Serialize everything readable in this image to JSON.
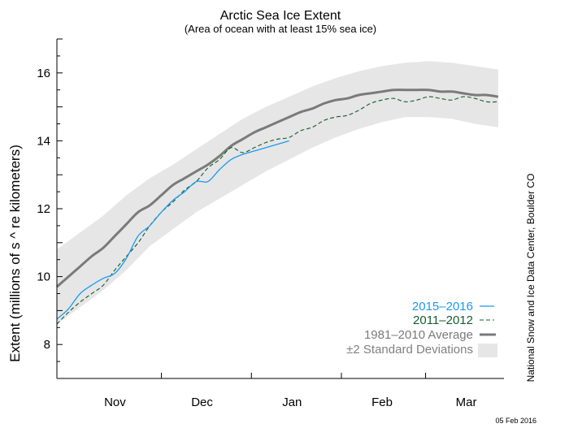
{
  "chart_data": {
    "type": "line",
    "title": "Arctic Sea Ice Extent",
    "subtitle": "(Area of ocean with at least 15% sea ice)",
    "ylabel": "Extent (millions of s ^ re kilometers)",
    "ylim": [
      7,
      17
    ],
    "yticks": [
      8,
      10,
      12,
      14,
      16
    ],
    "xlim": [
      "Oct 26",
      "Mar 28"
    ],
    "month_labels": [
      "Nov",
      "Dec",
      "Jan",
      "Feb",
      "Mar"
    ],
    "month_label_dates": [
      "Nov 15",
      "Dec 15",
      "Jan 15",
      "Feb 15",
      "Mar 15"
    ],
    "month_tick_dates": [
      "Dec 1",
      "Jan 1",
      "Feb 1",
      "Mar 1"
    ],
    "series": [
      {
        "name": "2015–2016",
        "color": "#1a9bf0",
        "style": "solid",
        "points": [
          [
            "Oct 26",
            8.75
          ],
          [
            "Oct 30",
            9.05
          ],
          [
            "Nov 3",
            9.5
          ],
          [
            "Nov 7",
            9.75
          ],
          [
            "Nov 11",
            9.95
          ],
          [
            "Nov 15",
            10.1
          ],
          [
            "Nov 19",
            10.55
          ],
          [
            "Nov 23",
            11.2
          ],
          [
            "Nov 27",
            11.5
          ],
          [
            "Dec 1",
            11.9
          ],
          [
            "Dec 5",
            12.25
          ],
          [
            "Dec 9",
            12.5
          ],
          [
            "Dec 13",
            12.8
          ],
          [
            "Dec 17",
            12.8
          ],
          [
            "Dec 21",
            13.15
          ],
          [
            "Dec 25",
            13.45
          ],
          [
            "Dec 29",
            13.6
          ],
          [
            "Jan 2",
            13.7
          ],
          [
            "Jan 6",
            13.8
          ],
          [
            "Jan 10",
            13.9
          ],
          [
            "Jan 14",
            14.0
          ]
        ]
      },
      {
        "name": "2011–2012",
        "color": "#135d2b",
        "style": "dashed",
        "points": [
          [
            "Oct 26",
            8.6
          ],
          [
            "Oct 30",
            8.95
          ],
          [
            "Nov 3",
            9.25
          ],
          [
            "Nov 7",
            9.5
          ],
          [
            "Nov 11",
            9.75
          ],
          [
            "Nov 15",
            10.2
          ],
          [
            "Nov 19",
            10.6
          ],
          [
            "Nov 23",
            11.0
          ],
          [
            "Nov 27",
            11.5
          ],
          [
            "Dec 1",
            11.9
          ],
          [
            "Dec 5",
            12.2
          ],
          [
            "Dec 9",
            12.55
          ],
          [
            "Dec 13",
            12.8
          ],
          [
            "Dec 17",
            13.2
          ],
          [
            "Dec 21",
            13.45
          ],
          [
            "Dec 25",
            13.8
          ],
          [
            "Dec 29",
            13.65
          ],
          [
            "Jan 2",
            13.8
          ],
          [
            "Jan 6",
            13.95
          ],
          [
            "Jan 10",
            14.05
          ],
          [
            "Jan 14",
            14.1
          ],
          [
            "Jan 18",
            14.3
          ],
          [
            "Jan 22",
            14.4
          ],
          [
            "Jan 26",
            14.6
          ],
          [
            "Jan 30",
            14.7
          ],
          [
            "Feb 3",
            14.75
          ],
          [
            "Feb 7",
            14.9
          ],
          [
            "Feb 11",
            15.1
          ],
          [
            "Feb 15",
            15.2
          ],
          [
            "Feb 19",
            15.25
          ],
          [
            "Feb 23",
            15.15
          ],
          [
            "Feb 27",
            15.2
          ],
          [
            "Mar 2",
            15.3
          ],
          [
            "Mar 6",
            15.25
          ],
          [
            "Mar 10",
            15.2
          ],
          [
            "Mar 14",
            15.3
          ],
          [
            "Mar 18",
            15.25
          ],
          [
            "Mar 22",
            15.15
          ],
          [
            "Mar 26",
            15.15
          ]
        ]
      },
      {
        "name": "1981–2010 Average",
        "color": "#7a7a7a",
        "style": "solid-thick",
        "points": [
          [
            "Oct 26",
            9.7
          ],
          [
            "Oct 30",
            10.0
          ],
          [
            "Nov 3",
            10.3
          ],
          [
            "Nov 7",
            10.6
          ],
          [
            "Nov 11",
            10.85
          ],
          [
            "Nov 15",
            11.2
          ],
          [
            "Nov 19",
            11.55
          ],
          [
            "Nov 23",
            11.9
          ],
          [
            "Nov 27",
            12.1
          ],
          [
            "Dec 1",
            12.4
          ],
          [
            "Dec 5",
            12.7
          ],
          [
            "Dec 9",
            12.9
          ],
          [
            "Dec 13",
            13.1
          ],
          [
            "Dec 17",
            13.3
          ],
          [
            "Dec 21",
            13.55
          ],
          [
            "Dec 25",
            13.85
          ],
          [
            "Dec 29",
            14.05
          ],
          [
            "Jan 2",
            14.25
          ],
          [
            "Jan 6",
            14.4
          ],
          [
            "Jan 10",
            14.55
          ],
          [
            "Jan 14",
            14.7
          ],
          [
            "Jan 18",
            14.85
          ],
          [
            "Jan 22",
            14.95
          ],
          [
            "Jan 26",
            15.1
          ],
          [
            "Jan 30",
            15.2
          ],
          [
            "Feb 3",
            15.25
          ],
          [
            "Feb 7",
            15.35
          ],
          [
            "Feb 11",
            15.4
          ],
          [
            "Feb 15",
            15.45
          ],
          [
            "Feb 19",
            15.5
          ],
          [
            "Feb 23",
            15.5
          ],
          [
            "Feb 27",
            15.5
          ],
          [
            "Mar 2",
            15.5
          ],
          [
            "Mar 6",
            15.45
          ],
          [
            "Mar 10",
            15.45
          ],
          [
            "Mar 14",
            15.4
          ],
          [
            "Mar 18",
            15.35
          ],
          [
            "Mar 22",
            15.35
          ],
          [
            "Mar 26",
            15.3
          ]
        ]
      }
    ],
    "band": {
      "name": "±2 Standard Deviations",
      "color": "#e6e6e6",
      "upper": [
        [
          "Oct 26",
          10.8
        ],
        [
          "Nov 3",
          11.3
        ],
        [
          "Nov 11",
          11.8
        ],
        [
          "Nov 19",
          12.4
        ],
        [
          "Nov 27",
          12.9
        ],
        [
          "Dec 5",
          13.3
        ],
        [
          "Dec 13",
          13.75
        ],
        [
          "Dec 21",
          14.2
        ],
        [
          "Dec 29",
          14.65
        ],
        [
          "Jan 6",
          15.0
        ],
        [
          "Jan 14",
          15.3
        ],
        [
          "Jan 22",
          15.6
        ],
        [
          "Jan 30",
          15.85
        ],
        [
          "Feb 7",
          16.05
        ],
        [
          "Feb 15",
          16.2
        ],
        [
          "Feb 23",
          16.3
        ],
        [
          "Mar 2",
          16.35
        ],
        [
          "Mar 10",
          16.3
        ],
        [
          "Mar 18",
          16.2
        ],
        [
          "Mar 26",
          16.1
        ]
      ],
      "lower": [
        [
          "Oct 26",
          8.6
        ],
        [
          "Nov 3",
          9.1
        ],
        [
          "Nov 11",
          9.6
        ],
        [
          "Nov 19",
          10.2
        ],
        [
          "Nov 27",
          10.9
        ],
        [
          "Dec 5",
          11.4
        ],
        [
          "Dec 13",
          11.9
        ],
        [
          "Dec 21",
          12.3
        ],
        [
          "Dec 29",
          12.7
        ],
        [
          "Jan 6",
          13.1
        ],
        [
          "Jan 14",
          13.45
        ],
        [
          "Jan 22",
          13.8
        ],
        [
          "Jan 30",
          14.1
        ],
        [
          "Feb 7",
          14.35
        ],
        [
          "Feb 15",
          14.55
        ],
        [
          "Feb 23",
          14.7
        ],
        [
          "Mar 2",
          14.7
        ],
        [
          "Mar 10",
          14.65
        ],
        [
          "Mar 18",
          14.5
        ],
        [
          "Mar 26",
          14.4
        ]
      ]
    },
    "legend_position": "bottom-right",
    "grid": false
  },
  "credit": "National Snow and Ice Data Center, Boulder CO",
  "date_stamp": "05 Feb 2016"
}
